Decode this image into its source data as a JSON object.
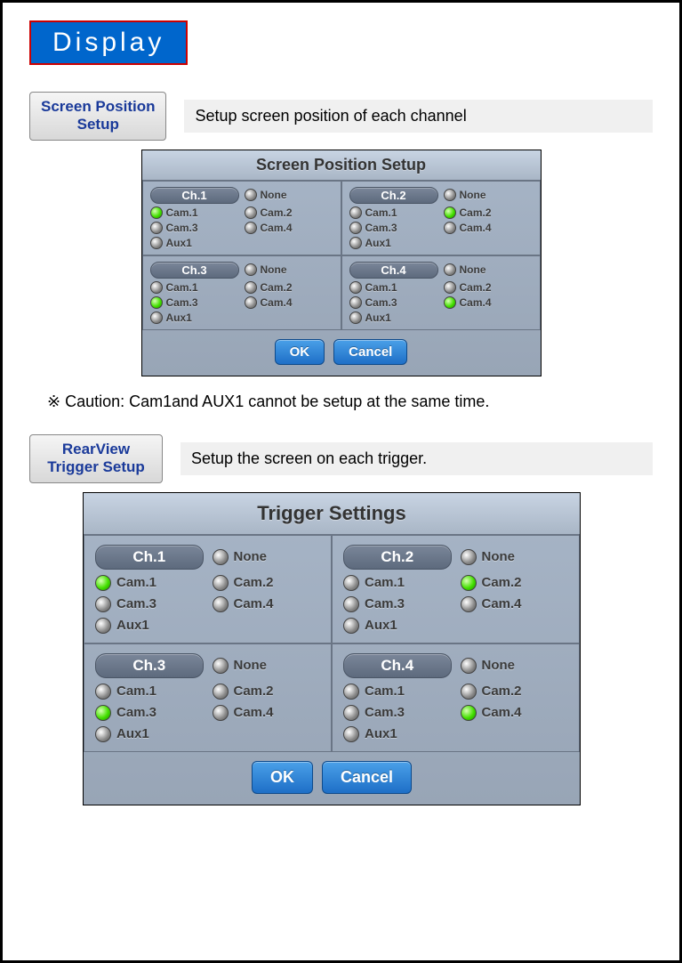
{
  "header": {
    "title": "Display"
  },
  "section1": {
    "button_line1": "Screen Position",
    "button_line2": "Setup",
    "desc": "Setup screen position of each channel",
    "panel_title": "Screen Position Setup",
    "ok": "OK",
    "cancel": "Cancel",
    "options": [
      "None",
      "Cam.1",
      "Cam.2",
      "Cam.3",
      "Cam.4",
      "Aux1"
    ],
    "channels": [
      {
        "label": "Ch.1",
        "selected": "Cam.1"
      },
      {
        "label": "Ch.2",
        "selected": "Cam.2"
      },
      {
        "label": "Ch.3",
        "selected": "Cam.3"
      },
      {
        "label": "Ch.4",
        "selected": "Cam.4"
      }
    ],
    "caution": "※ Caution: Cam1and AUX1 cannot be setup at the same time."
  },
  "section2": {
    "button_line1": "RearView",
    "button_line2": "Trigger Setup",
    "desc": "Setup the screen on each trigger.",
    "panel_title": "Trigger Settings",
    "ok": "OK",
    "cancel": "Cancel",
    "options": [
      "None",
      "Cam.1",
      "Cam.2",
      "Cam.3",
      "Cam.4",
      "Aux1"
    ],
    "channels": [
      {
        "label": "Ch.1",
        "selected": "Cam.1"
      },
      {
        "label": "Ch.2",
        "selected": "Cam.2"
      },
      {
        "label": "Ch.3",
        "selected": "Cam.3"
      },
      {
        "label": "Ch.4",
        "selected": "Cam.4"
      }
    ]
  },
  "colors": {
    "title_bg": "#0066cc",
    "title_border": "#c00",
    "panel_bg": "#9daab9",
    "radio_on": "#44e000",
    "btn_bg": "#2a7fd4"
  }
}
